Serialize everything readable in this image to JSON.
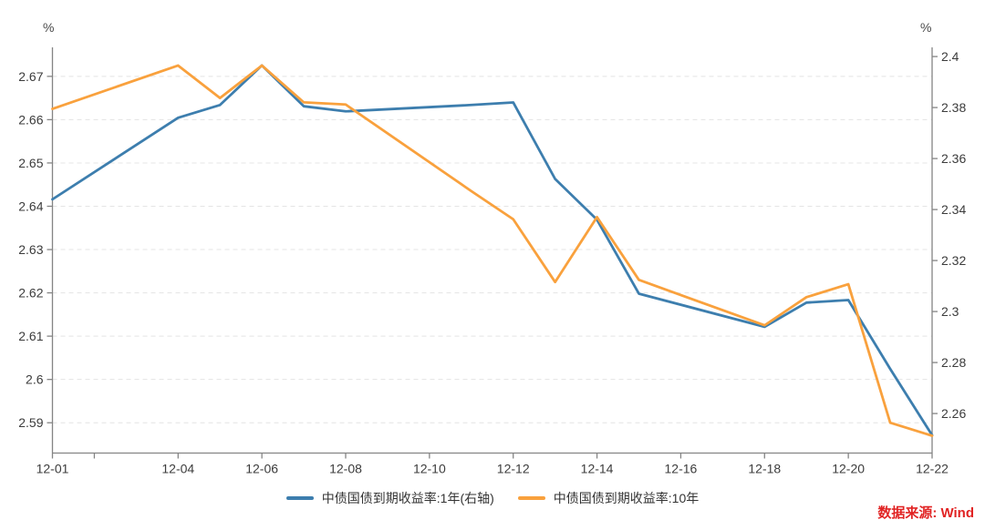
{
  "chart_data": {
    "type": "line",
    "title": "",
    "x_dates": [
      "12-01",
      "12-04",
      "12-05",
      "12-06",
      "12-07",
      "12-08",
      "12-11",
      "12-12",
      "12-13",
      "12-14",
      "12-15",
      "12-18",
      "12-19",
      "12-20",
      "12-21",
      "12-22"
    ],
    "x_day_numbers": [
      1,
      4,
      5,
      6,
      7,
      8,
      11,
      12,
      13,
      14,
      15,
      18,
      19,
      20,
      21,
      22
    ],
    "series": [
      {
        "name": "中债国债到期收益率:1年(右轴)",
        "axis": "right",
        "color": "#3d7eae",
        "values": [
          2.344,
          2.376,
          2.381,
          2.3965,
          2.3805,
          2.3785,
          2.381,
          2.382,
          2.352,
          2.336,
          2.307,
          2.294,
          2.3035,
          2.3045,
          2.2775,
          2.2515
        ]
      },
      {
        "name": "中债国债到期收益率:10年",
        "axis": "left",
        "color": "#f9a13d",
        "values": [
          2.6625,
          2.6725,
          2.665,
          2.6725,
          2.664,
          2.6635,
          2.6435,
          2.637,
          2.6225,
          2.6375,
          2.623,
          2.6125,
          2.619,
          2.622,
          2.59,
          2.587
        ]
      }
    ],
    "left_axis": {
      "unit": "%",
      "tick_labels": [
        "2.67",
        "2.66",
        "2.65",
        "2.64",
        "2.63",
        "2.62",
        "2.61",
        "2.6",
        "2.59"
      ],
      "tick_values": [
        2.67,
        2.66,
        2.65,
        2.64,
        2.63,
        2.62,
        2.61,
        2.6,
        2.59
      ],
      "range": [
        2.583,
        2.6767
      ]
    },
    "right_axis": {
      "unit": "%",
      "tick_labels": [
        "2.4",
        "2.38",
        "2.36",
        "2.34",
        "2.32",
        "2.3",
        "2.28",
        "2.26"
      ],
      "tick_values": [
        2.4,
        2.38,
        2.36,
        2.34,
        2.32,
        2.3,
        2.28,
        2.26
      ],
      "range": [
        2.2445,
        2.4036
      ]
    },
    "x_axis": {
      "range": [
        1,
        22
      ],
      "ticks": [
        {
          "day": 1,
          "label": "12-01"
        },
        {
          "day": 2,
          "label": ""
        },
        {
          "day": 4,
          "label": "12-04"
        },
        {
          "day": 6,
          "label": "12-06"
        },
        {
          "day": 8,
          "label": "12-08"
        },
        {
          "day": 10,
          "label": "12-10"
        },
        {
          "day": 12,
          "label": "12-12"
        },
        {
          "day": 14,
          "label": "12-14"
        },
        {
          "day": 16,
          "label": "12-16"
        },
        {
          "day": 18,
          "label": "12-18"
        },
        {
          "day": 20,
          "label": "12-20"
        },
        {
          "day": 22,
          "label": "12-22"
        }
      ]
    },
    "grid": "horizontal-dashed",
    "legend_position": "bottom-center",
    "style": {
      "axis_color": "#848484",
      "tick_label_color": "#3c3c3c",
      "gridline_color": "#e4e4e4",
      "line_width": 2.8
    }
  },
  "legend": {
    "items": [
      {
        "label": "中债国债到期收益率:1年(右轴)",
        "color": "#3d7eae"
      },
      {
        "label": "中债国债到期收益率:10年",
        "color": "#f9a13d"
      }
    ]
  },
  "source_note": {
    "text": "数据来源: Wind",
    "color": "#e12424"
  }
}
